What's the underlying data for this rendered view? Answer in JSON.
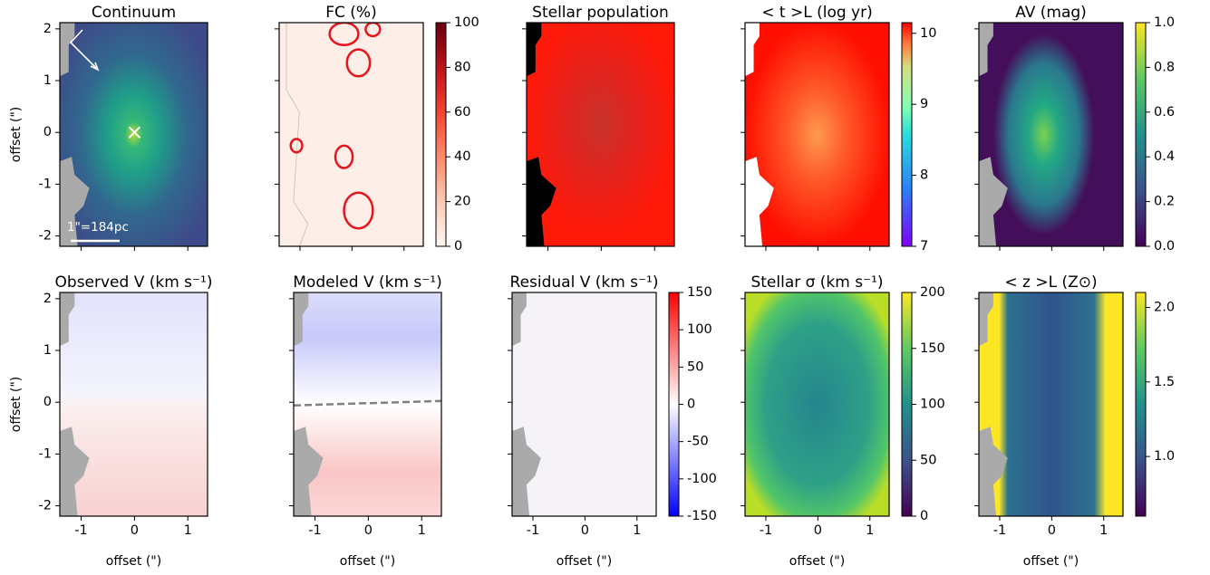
{
  "chart_data": [
    {
      "type": "heatmap",
      "title": "Continuum",
      "ylabel": "offset (\")",
      "annotation": "1\"=184pc",
      "xlim": [
        -1.4,
        1.37
      ],
      "ylim": [
        -2.2,
        2.12
      ],
      "xticks": [
        -1,
        0,
        1
      ],
      "yticks": [
        -2,
        -1,
        0,
        1,
        2
      ],
      "xticklabels": false,
      "yticklabels": true,
      "colormap": "continuum"
    },
    {
      "type": "heatmap",
      "title": "FC (%)",
      "xlim": [
        -1.4,
        1.37
      ],
      "ylim": [
        -2.2,
        2.12
      ],
      "xticks": [
        -1,
        0,
        1
      ],
      "yticks": [
        -2,
        -1,
        0,
        1,
        2
      ],
      "xticklabels": false,
      "yticklabels": false,
      "colormap": "Reds",
      "colorbar": {
        "lim": [
          0,
          100
        ],
        "ticks": [
          0,
          20,
          40,
          60,
          80,
          100
        ]
      }
    },
    {
      "type": "heatmap",
      "title": "Stellar population",
      "xlim": [
        -1.4,
        1.37
      ],
      "ylim": [
        -2.2,
        2.12
      ],
      "xticks": [
        -1,
        0,
        1
      ],
      "yticks": [
        -2,
        -1,
        0,
        1,
        2
      ],
      "xticklabels": false,
      "yticklabels": false,
      "colormap": "population"
    },
    {
      "type": "heatmap",
      "title": "< t >L (log yr)",
      "xlim": [
        -1.4,
        1.37
      ],
      "ylim": [
        -2.2,
        2.12
      ],
      "xticks": [
        -1,
        0,
        1
      ],
      "yticks": [
        -2,
        -1,
        0,
        1,
        2
      ],
      "xticklabels": false,
      "yticklabels": false,
      "colormap": "rainbow",
      "colorbar": {
        "lim": [
          7,
          10.15
        ],
        "ticks": [
          7,
          8,
          9,
          10
        ]
      }
    },
    {
      "type": "heatmap",
      "title": "AV (mag)",
      "xlim": [
        -1.4,
        1.37
      ],
      "ylim": [
        -2.2,
        2.12
      ],
      "xticks": [
        -1,
        0,
        1
      ],
      "yticks": [
        -2,
        -1,
        0,
        1,
        2
      ],
      "xticklabels": false,
      "yticklabels": false,
      "colormap": "viridis",
      "colorbar": {
        "lim": [
          0,
          1
        ],
        "ticks": [
          {
            "value": 0,
            "label": "0.0"
          },
          {
            "value": 0.2,
            "label": "0.2"
          },
          {
            "value": 0.4,
            "label": "0.4"
          },
          {
            "value": 0.6,
            "label": "0.6"
          },
          {
            "value": 0.8,
            "label": "0.8"
          },
          {
            "value": 1,
            "label": "1.0"
          }
        ]
      }
    },
    {
      "type": "heatmap",
      "title": "Observed V (km s⁻¹)",
      "xlabel": "offset (\")",
      "ylabel": "offset (\")",
      "xlim": [
        -1.4,
        1.37
      ],
      "ylim": [
        -2.2,
        2.12
      ],
      "xticks": [
        -1,
        0,
        1
      ],
      "yticks": [
        -2,
        -1,
        0,
        1,
        2
      ],
      "xticklabels": true,
      "yticklabels": true,
      "colormap": "bwr"
    },
    {
      "type": "heatmap",
      "title": "Modeled V (km s⁻¹)",
      "xlabel": "offset (\")",
      "xlim": [
        -1.4,
        1.37
      ],
      "ylim": [
        -2.2,
        2.12
      ],
      "xticks": [
        -1,
        0,
        1
      ],
      "yticks": [
        -2,
        -1,
        0,
        1,
        2
      ],
      "xticklabels": true,
      "yticklabels": false,
      "colormap": "bwr-model"
    },
    {
      "type": "heatmap",
      "title": "Residual V (km s⁻¹)",
      "xlabel": "offset (\")",
      "xlim": [
        -1.4,
        1.37
      ],
      "ylim": [
        -2.2,
        2.12
      ],
      "xticks": [
        -1,
        0,
        1
      ],
      "yticks": [
        -2,
        -1,
        0,
        1,
        2
      ],
      "xticklabels": true,
      "yticklabels": false,
      "colormap": "bwr-res",
      "colorbar": {
        "lim": [
          -150,
          150
        ],
        "ticks": [
          -150,
          -100,
          -50,
          0,
          50,
          100,
          150
        ]
      }
    },
    {
      "type": "heatmap",
      "title": "Stellar σ (km s⁻¹)",
      "xlabel": "offset (\")",
      "xlim": [
        -1.4,
        1.37
      ],
      "ylim": [
        -2.2,
        2.12
      ],
      "xticks": [
        -1,
        0,
        1
      ],
      "yticks": [
        -2,
        -1,
        0,
        1,
        2
      ],
      "xticklabels": true,
      "yticklabels": false,
      "colormap": "viridis-sigma",
      "colorbar": {
        "lim": [
          0,
          200
        ],
        "ticks": [
          0,
          50,
          100,
          150,
          200
        ]
      }
    },
    {
      "type": "heatmap",
      "title": "< z >L (Z⊙)",
      "xlabel": "offset (\")",
      "xlim": [
        -1.4,
        1.37
      ],
      "ylim": [
        -2.2,
        2.12
      ],
      "xticks": [
        -1,
        0,
        1
      ],
      "yticks": [
        -2,
        -1,
        0,
        1,
        2
      ],
      "xticklabels": true,
      "yticklabels": false,
      "colormap": "viridis-z",
      "colorbar": {
        "lim": [
          0.6,
          2.1
        ],
        "ticks": [
          {
            "value": 1,
            "label": "1.0"
          },
          {
            "value": 1.5,
            "label": "1.5"
          },
          {
            "value": 2,
            "label": "2.0"
          }
        ]
      }
    }
  ]
}
